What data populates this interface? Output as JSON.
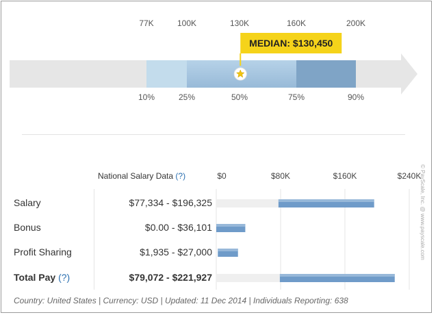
{
  "chart_data": [
    {
      "type": "bar",
      "description_type": "percentile range bar",
      "scale_labels": [
        "77K",
        "100K",
        "130K",
        "160K",
        "200K"
      ],
      "percentile_labels": [
        "10%",
        "25%",
        "50%",
        "75%",
        "90%"
      ],
      "percentile_values": [
        77000,
        100000,
        130000,
        160000,
        200000
      ],
      "median_label": "MEDIAN: $130,450",
      "median_value": 130450,
      "colors": {
        "arrow": "#e6e6e6",
        "band_outer": "#c3dcec",
        "band_inner": "#aac8e0",
        "band_upper": "#7fa4c6",
        "median_box": "#f5d31a"
      }
    },
    {
      "type": "bar",
      "orientation": "horizontal",
      "header": {
        "label": "National Salary Data",
        "help": "(?)"
      },
      "x_ticks": [
        "$0",
        "$80K",
        "$160K",
        "$240K"
      ],
      "xlim": [
        0,
        240000
      ],
      "series": [
        {
          "label": "Salary",
          "range_text": "$77,334 - $196,325",
          "low": 77334,
          "high": 196325,
          "bold": false,
          "help": ""
        },
        {
          "label": "Bonus",
          "range_text": "$0.00 - $36,101",
          "low": 0,
          "high": 36101,
          "bold": false,
          "help": ""
        },
        {
          "label": "Profit Sharing",
          "range_text": "$1,935 - $27,000",
          "low": 1935,
          "high": 27000,
          "bold": false,
          "help": ""
        },
        {
          "label": "Total Pay",
          "range_text": "$79,072 - $221,927",
          "low": 79072,
          "high": 221927,
          "bold": true,
          "help": "(?)"
        }
      ],
      "colors": {
        "bar": "#6f9bc9",
        "bar_light": "#a8c4e0",
        "track": "#efefef"
      }
    }
  ],
  "footer": "Country: United States | Currency: USD | Updated: 11 Dec 2014 | Individuals Reporting: 638",
  "watermark": "© PayScale, Inc. @ www.payscale.com"
}
